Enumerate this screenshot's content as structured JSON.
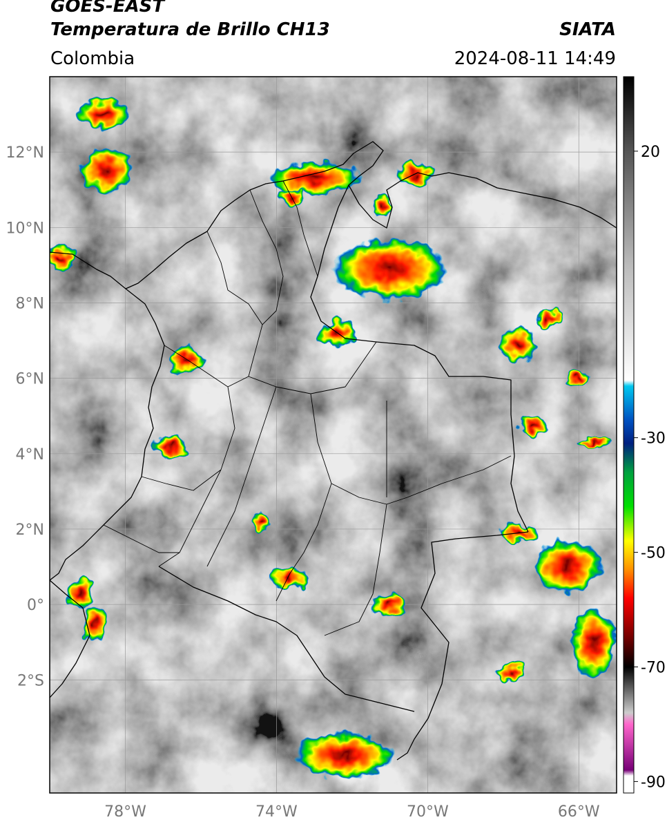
{
  "header": {
    "satellite": "GOES-EAST",
    "product": "Temperatura de Brillo CH13",
    "agency": "SIATA",
    "region": "Colombia",
    "datetime": "2024-08-11 14:49"
  },
  "map": {
    "lon_range": [
      -80,
      -65
    ],
    "lat_range": [
      -5,
      14
    ],
    "lat_ticks": [
      {
        "value": 12,
        "label": "12°N"
      },
      {
        "value": 10,
        "label": "10°N"
      },
      {
        "value": 8,
        "label": "8°N"
      },
      {
        "value": 6,
        "label": "6°N"
      },
      {
        "value": 4,
        "label": "4°N"
      },
      {
        "value": 2,
        "label": "2°N"
      },
      {
        "value": 0,
        "label": "0°"
      },
      {
        "value": -2,
        "label": "2°S"
      }
    ],
    "lon_ticks": [
      {
        "value": -78,
        "label": "78°W"
      },
      {
        "value": -74,
        "label": "74°W"
      },
      {
        "value": -70,
        "label": "70°W"
      },
      {
        "value": -66,
        "label": "66°W"
      }
    ],
    "grid": true
  },
  "colorbar": {
    "range": [
      -92,
      33
    ],
    "ticks": [
      {
        "value": 20,
        "label": "20"
      },
      {
        "value": -30,
        "label": "-30"
      },
      {
        "value": -50,
        "label": "-50"
      },
      {
        "value": -70,
        "label": "-70"
      },
      {
        "value": -90,
        "label": "-90"
      }
    ],
    "stops": [
      {
        "value": 33,
        "color": "#000000"
      },
      {
        "value": 20,
        "color": "#555555"
      },
      {
        "value": 0,
        "color": "#bbbbbb"
      },
      {
        "value": -20,
        "color": "#ffffff"
      },
      {
        "value": -21,
        "color": "#00c8f0"
      },
      {
        "value": -27,
        "color": "#0050c0"
      },
      {
        "value": -31,
        "color": "#002080"
      },
      {
        "value": -36,
        "color": "#00a040"
      },
      {
        "value": -42,
        "color": "#00e000"
      },
      {
        "value": -48,
        "color": "#ffff00"
      },
      {
        "value": -53,
        "color": "#ff9000"
      },
      {
        "value": -58,
        "color": "#ff0000"
      },
      {
        "value": -65,
        "color": "#700000"
      },
      {
        "value": -70,
        "color": "#000000"
      },
      {
        "value": -78,
        "color": "#cccccc"
      },
      {
        "value": -80,
        "color": "#ff66cc"
      },
      {
        "value": -88,
        "color": "#770077"
      },
      {
        "value": -89,
        "color": "#ffffff"
      },
      {
        "value": -92,
        "color": "#ffffff"
      }
    ]
  },
  "storm_cells": [
    {
      "lon": -73.0,
      "lat": 11.3,
      "rx": 1.2,
      "ry": 0.45
    },
    {
      "lon": -70.3,
      "lat": 11.4,
      "rx": 0.45,
      "ry": 0.35
    },
    {
      "lon": -71.0,
      "lat": 8.9,
      "rx": 1.5,
      "ry": 0.8
    },
    {
      "lon": -72.4,
      "lat": 7.2,
      "rx": 0.5,
      "ry": 0.35
    },
    {
      "lon": -76.4,
      "lat": 6.5,
      "rx": 0.5,
      "ry": 0.35
    },
    {
      "lon": -76.8,
      "lat": 4.2,
      "rx": 0.45,
      "ry": 0.3
    },
    {
      "lon": -67.6,
      "lat": 6.9,
      "rx": 0.5,
      "ry": 0.45
    },
    {
      "lon": -66.8,
      "lat": 7.6,
      "rx": 0.35,
      "ry": 0.25
    },
    {
      "lon": -66.0,
      "lat": 6.0,
      "rx": 0.3,
      "ry": 0.22
    },
    {
      "lon": -67.2,
      "lat": 4.7,
      "rx": 0.45,
      "ry": 0.25
    },
    {
      "lon": -78.6,
      "lat": 13.0,
      "rx": 0.7,
      "ry": 0.4
    },
    {
      "lon": -78.5,
      "lat": 11.5,
      "rx": 0.7,
      "ry": 0.6
    },
    {
      "lon": -79.7,
      "lat": 9.2,
      "rx": 0.4,
      "ry": 0.3
    },
    {
      "lon": -66.3,
      "lat": 1.0,
      "rx": 0.9,
      "ry": 0.7
    },
    {
      "lon": -65.6,
      "lat": -1.0,
      "rx": 0.6,
      "ry": 0.9
    },
    {
      "lon": -72.2,
      "lat": -4.0,
      "rx": 1.3,
      "ry": 0.6
    },
    {
      "lon": -71.0,
      "lat": 0.0,
      "rx": 0.5,
      "ry": 0.3
    },
    {
      "lon": -73.7,
      "lat": 0.7,
      "rx": 0.5,
      "ry": 0.3
    },
    {
      "lon": -74.4,
      "lat": 2.2,
      "rx": 0.25,
      "ry": 0.25
    },
    {
      "lon": -79.2,
      "lat": 0.3,
      "rx": 0.35,
      "ry": 0.4
    },
    {
      "lon": -78.8,
      "lat": -0.5,
      "rx": 0.35,
      "ry": 0.5
    },
    {
      "lon": -67.6,
      "lat": 1.9,
      "rx": 0.5,
      "ry": 0.25
    },
    {
      "lon": -67.8,
      "lat": -1.8,
      "rx": 0.35,
      "ry": 0.25
    },
    {
      "lon": -65.6,
      "lat": 4.3,
      "rx": 0.45,
      "ry": 0.15
    },
    {
      "lon": -71.2,
      "lat": 10.6,
      "rx": 0.3,
      "ry": 0.3
    },
    {
      "lon": -73.6,
      "lat": 10.8,
      "rx": 0.35,
      "ry": 0.25
    }
  ]
}
